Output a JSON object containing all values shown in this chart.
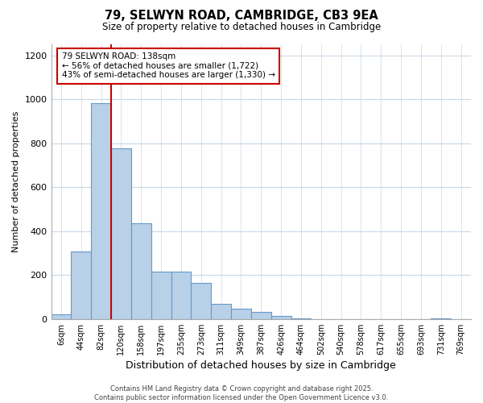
{
  "title": "79, SELWYN ROAD, CAMBRIDGE, CB3 9EA",
  "subtitle": "Size of property relative to detached houses in Cambridge",
  "xlabel": "Distribution of detached houses by size in Cambridge",
  "ylabel": "Number of detached properties",
  "footer_line1": "Contains HM Land Registry data © Crown copyright and database right 2025.",
  "footer_line2": "Contains public sector information licensed under the Open Government Licence v3.0.",
  "annotation_line1": "79 SELWYN ROAD: 138sqm",
  "annotation_line2": "← 56% of detached houses are smaller (1,722)",
  "annotation_line3": "43% of semi-detached houses are larger (1,330) →",
  "bar_labels": [
    "6sqm",
    "44sqm",
    "82sqm",
    "120sqm",
    "158sqm",
    "197sqm",
    "235sqm",
    "273sqm",
    "311sqm",
    "349sqm",
    "387sqm",
    "426sqm",
    "464sqm",
    "502sqm",
    "540sqm",
    "578sqm",
    "617sqm",
    "655sqm",
    "693sqm",
    "731sqm",
    "769sqm"
  ],
  "bar_values": [
    20,
    308,
    983,
    778,
    435,
    215,
    215,
    163,
    70,
    48,
    33,
    14,
    2,
    1,
    1,
    0,
    0,
    0,
    0,
    3,
    0
  ],
  "bar_color": "#b8d0e8",
  "bar_edge_color": "#6699cc",
  "vline_color": "#cc0000",
  "ylim": [
    0,
    1250
  ],
  "yticks": [
    0,
    200,
    400,
    600,
    800,
    1000,
    1200
  ],
  "annotation_box_color": "#ffffff",
  "annotation_box_edge": "#cc0000",
  "bg_color": "#ffffff",
  "grid_color": "#c8d8e8"
}
